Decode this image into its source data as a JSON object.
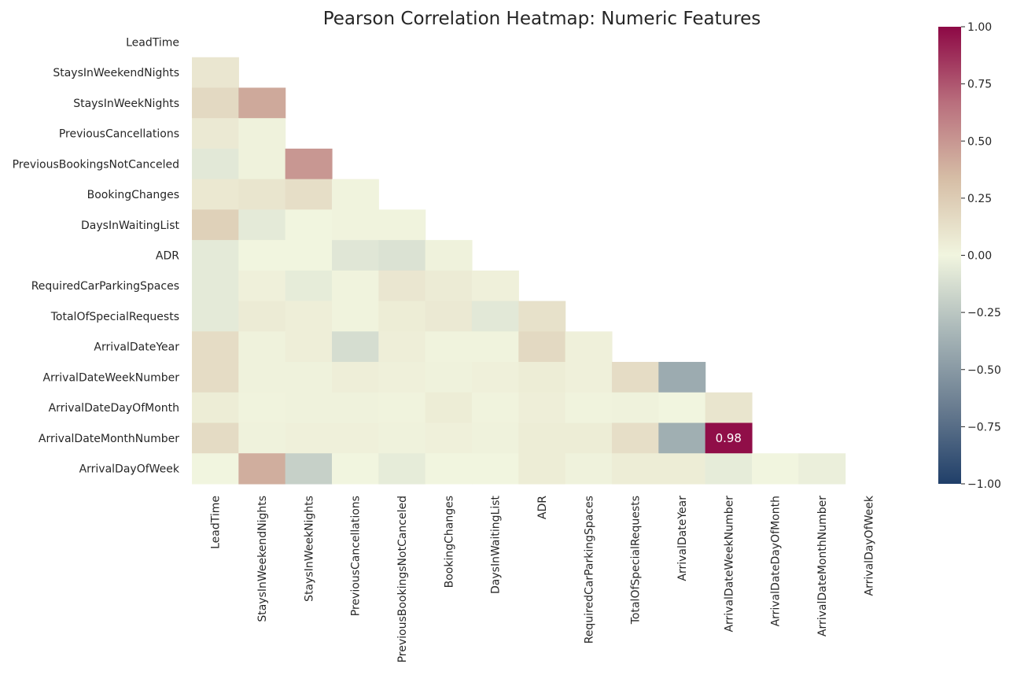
{
  "chart_data": {
    "type": "heatmap",
    "title": "Pearson Correlation Heatmap: Numeric Features",
    "xlabel": "",
    "ylabel": "",
    "mask": "upper-triangle-including-diagonal",
    "features": [
      "LeadTime",
      "StaysInWeekendNights",
      "StaysInWeekNights",
      "PreviousCancellations",
      "PreviousBookingsNotCanceled",
      "BookingChanges",
      "DaysInWaitingList",
      "ADR",
      "RequiredCarParkingSpaces",
      "TotalOfSpecialRequests",
      "ArrivalDateYear",
      "ArrivalDateWeekNumber",
      "ArrivalDateDayOfMonth",
      "ArrivalDateMonthNumber",
      "ArrivalDayOfWeek"
    ],
    "lower_triangle_values": [
      [],
      [
        0.09
      ],
      [
        0.17,
        0.42
      ],
      [
        0.07,
        0.02
      ],
      [
        -0.07,
        0.02,
        0.5
      ],
      [
        0.08,
        0.1,
        0.14,
        0.01
      ],
      [
        0.22,
        -0.06,
        0.0,
        0.01,
        0.01
      ],
      [
        -0.06,
        0.0,
        0.0,
        -0.08,
        -0.1,
        0.02
      ],
      [
        -0.06,
        0.03,
        -0.05,
        0.01,
        0.09,
        0.06,
        0.03
      ],
      [
        -0.06,
        0.06,
        0.04,
        0.01,
        0.05,
        0.07,
        -0.07,
        0.12
      ],
      [
        0.15,
        0.02,
        0.04,
        -0.13,
        0.04,
        0.01,
        0.01,
        0.17,
        0.03
      ],
      [
        0.15,
        0.02,
        0.02,
        0.04,
        0.03,
        0.02,
        0.03,
        0.05,
        0.03,
        0.15,
        -0.4
      ],
      [
        0.05,
        0.01,
        0.02,
        0.02,
        0.01,
        0.05,
        0.01,
        0.04,
        0.01,
        0.02,
        0.0,
        0.1
      ],
      [
        0.16,
        0.02,
        0.03,
        0.03,
        0.02,
        0.03,
        0.02,
        0.05,
        0.05,
        0.14,
        -0.38,
        0.98
      ],
      [
        0.0,
        0.4,
        -0.2,
        0.0,
        -0.05,
        0.0,
        0.0,
        0.05,
        0.02,
        0.05,
        0.05,
        -0.05,
        0.0,
        -0.03
      ]
    ],
    "annotations": [
      {
        "row": 13,
        "col": 11,
        "text": "0.98"
      }
    ],
    "colorbar": {
      "vmin": -1.0,
      "vmax": 1.0,
      "ticks": [
        "1.00",
        "0.75",
        "0.50",
        "0.25",
        "0.00",
        "−0.25",
        "−0.50",
        "−0.75",
        "−1.00"
      ],
      "colormap_stops": [
        "#203f69",
        "#697c90",
        "#a9b7b8",
        "#f1f5df",
        "#d6bea6",
        "#b96f7d",
        "#8d0845"
      ]
    }
  }
}
